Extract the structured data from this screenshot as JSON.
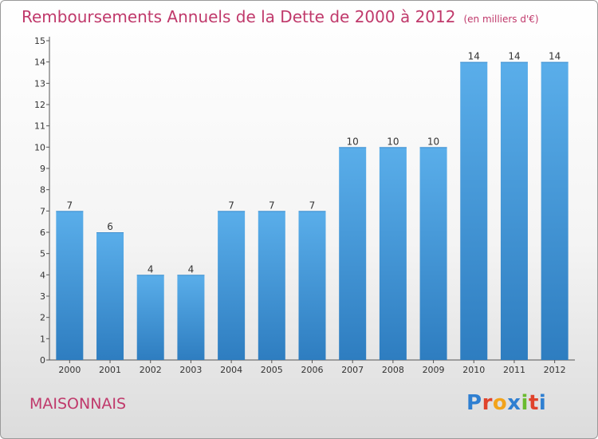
{
  "title": "Remboursements Annuels de la Dette de 2000 à 2012",
  "subtitle": "(en milliers d'€)",
  "footer": {
    "commune": "MAISONNAIS",
    "logo_letters": [
      "P",
      "r",
      "o",
      "x",
      "i",
      "t",
      "i"
    ],
    "logo_colors": [
      "#2f7fd1",
      "#e0432b",
      "#f2a31b",
      "#2f7fd1",
      "#6abb2f",
      "#e0432b",
      "#2f7fd1"
    ]
  },
  "colors": {
    "bar_top": "#5aaeea",
    "bar_bottom": "#2e7dc0",
    "accent": "#c0396b"
  },
  "chart_data": {
    "type": "bar",
    "categories": [
      "2000",
      "2001",
      "2002",
      "2003",
      "2004",
      "2005",
      "2006",
      "2007",
      "2008",
      "2009",
      "2010",
      "2011",
      "2012"
    ],
    "values": [
      7,
      6,
      4,
      4,
      7,
      7,
      7,
      10,
      10,
      10,
      14,
      14,
      14
    ],
    "data_labels": [
      "7",
      "6",
      "4",
      "4",
      "7",
      "7",
      "7",
      "10",
      "10",
      "10",
      "14",
      "14",
      "14"
    ],
    "yticks": [
      "0",
      "1",
      "2",
      "3",
      "4",
      "5",
      "6",
      "7",
      "8",
      "9",
      "10",
      "11",
      "12",
      "13",
      "14",
      "15"
    ],
    "ylim": [
      0,
      15
    ],
    "grid": false,
    "legend": "none"
  }
}
